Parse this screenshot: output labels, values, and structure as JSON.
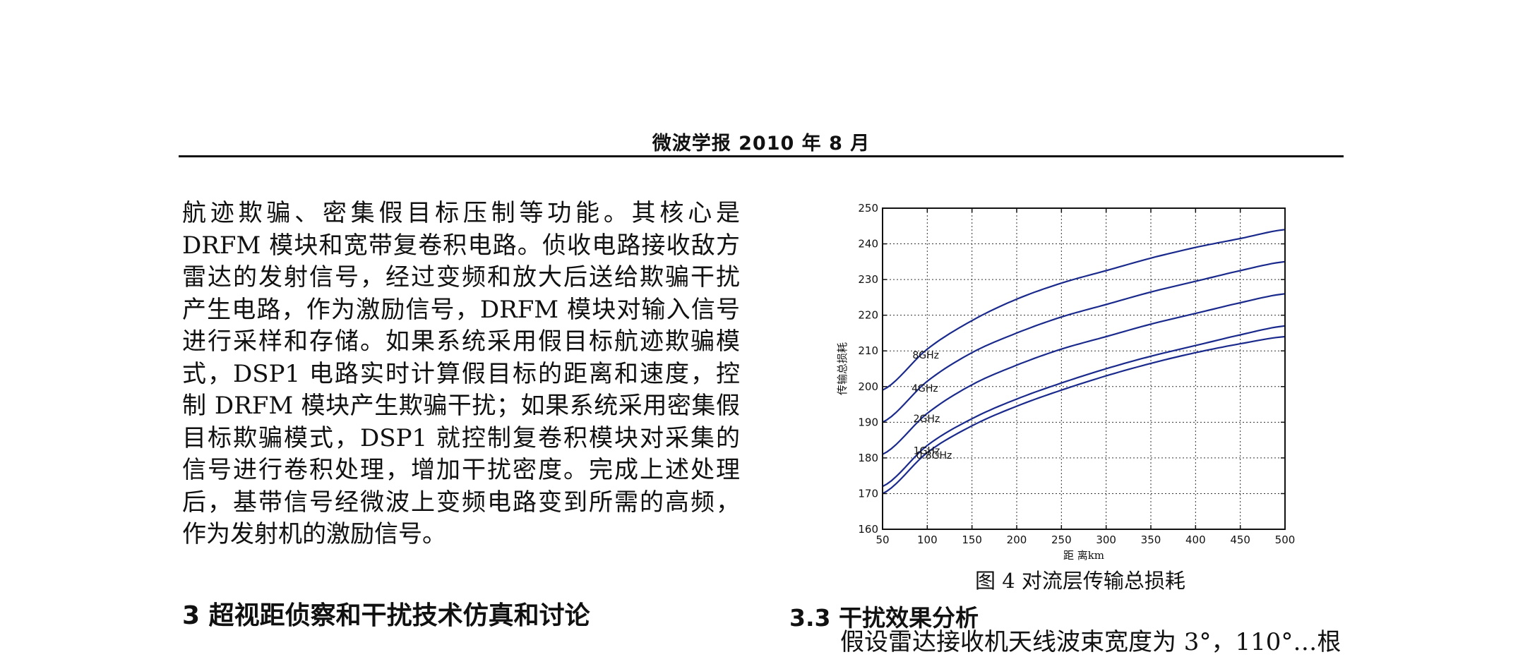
{
  "header": {
    "running_title": "微波学报 2010 年 8 月"
  },
  "body_text": {
    "lines": [
      "航迹欺骗、密集假目标压制等功能。其核心是",
      "DRFM 模块和宽带复卷积电路。侦收电路接收敌方",
      "雷达的发射信号，经过变频和放大后送给欺骗干扰",
      "产生电路，作为激励信号，DRFM 模块对输入信号",
      "进行采样和存储。如果系统采用假目标航迹欺骗模",
      "式，DSP1 电路实时计算假目标的距离和速度，控",
      "制 DRFM 模块产生欺骗干扰；如果系统采用密集假",
      "目标欺骗模式，DSP1 就控制复卷积模块对采集的",
      "信号进行卷积处理，增加干扰密度。完成上述处理",
      "后，基带信号经微波上变频电路变到所需的高频，",
      "作为发射机的激励信号。"
    ]
  },
  "section3": {
    "heading": "3  超视距侦察和干扰技术仿真和讨论"
  },
  "section33": {
    "heading": "3.3  干扰效果分析"
  },
  "right_col": {
    "cut_line": "假设雷达接收机天线波束宽度为 3°，110°…根"
  },
  "figure": {
    "caption": "图 4  对流层传输总损耗"
  },
  "chart_data": {
    "type": "line",
    "xlabel": "距 离km",
    "ylabel": "传输总损耗",
    "xlim": [
      50,
      500
    ],
    "ylim": [
      160,
      250
    ],
    "xticks": [
      50,
      100,
      150,
      200,
      250,
      300,
      350,
      400,
      450,
      500
    ],
    "yticks": [
      160,
      170,
      180,
      190,
      200,
      210,
      220,
      230,
      240,
      250
    ],
    "grid": true,
    "line_color": "#1a2a8c",
    "x": [
      50,
      100,
      150,
      200,
      250,
      300,
      350,
      400,
      450,
      500
    ],
    "series": [
      {
        "name": "8GHz",
        "values": [
          199,
          210.5,
          218.5,
          224.5,
          229,
          232.5,
          236,
          239,
          241.5,
          244
        ]
      },
      {
        "name": "4GHz",
        "values": [
          190,
          201.5,
          209.5,
          215,
          219.5,
          223,
          226.5,
          229.5,
          232.5,
          235
        ]
      },
      {
        "name": "2GHz",
        "values": [
          181,
          192.5,
          200.5,
          206,
          210.5,
          214,
          217.5,
          220.5,
          223.5,
          226
        ]
      },
      {
        "name": "1GHz",
        "values": [
          172,
          183.5,
          191,
          196.5,
          201,
          205,
          208.5,
          211.5,
          214.5,
          217
        ]
      },
      {
        "name": "0.8GHz",
        "values": [
          170,
          181.5,
          189,
          194.5,
          199,
          203,
          206.5,
          209.5,
          212,
          214
        ]
      }
    ]
  }
}
